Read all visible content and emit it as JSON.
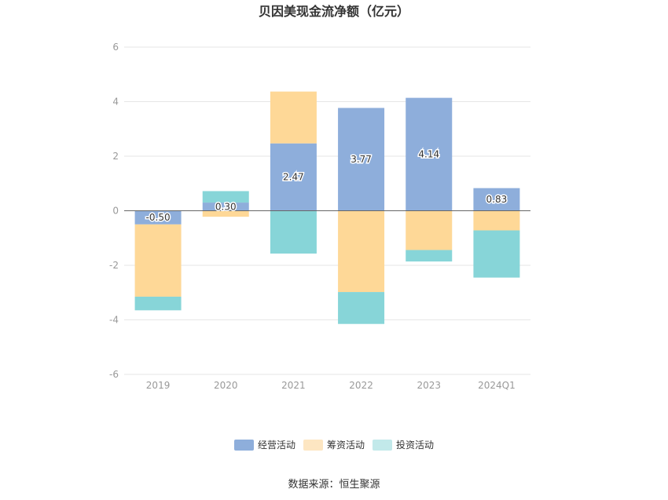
{
  "chart_data": {
    "type": "bar",
    "stacked": true,
    "title": "贝因美现金流净额（亿元）",
    "categories": [
      "2019",
      "2020",
      "2021",
      "2022",
      "2023",
      "2024Q1"
    ],
    "ylim": [
      -6,
      6
    ],
    "yticks": [
      6,
      4,
      2,
      0,
      -2,
      -4,
      -6
    ],
    "grid": true,
    "legend_position": "bottom",
    "series": [
      {
        "name": "经营活动",
        "color": "#8eaedb",
        "values": [
          -0.5,
          0.3,
          2.47,
          3.77,
          4.14,
          0.83
        ],
        "labels": [
          "-0.50",
          "0.30",
          "2.47",
          "3.77",
          "4.14",
          "0.83"
        ]
      },
      {
        "name": "筹资活动",
        "color": "#fed897",
        "values": [
          -2.65,
          -0.22,
          1.9,
          -2.98,
          -1.44,
          -0.72
        ]
      },
      {
        "name": "投资活动",
        "color": "#87d5d8",
        "values": [
          -0.5,
          0.42,
          -1.57,
          -1.17,
          -0.42,
          -1.73
        ]
      }
    ],
    "legend_colors": [
      "#8eaedb",
      "#fde6c2",
      "#c2e9ea"
    ]
  },
  "source_label": "数据来源：恒生聚源"
}
